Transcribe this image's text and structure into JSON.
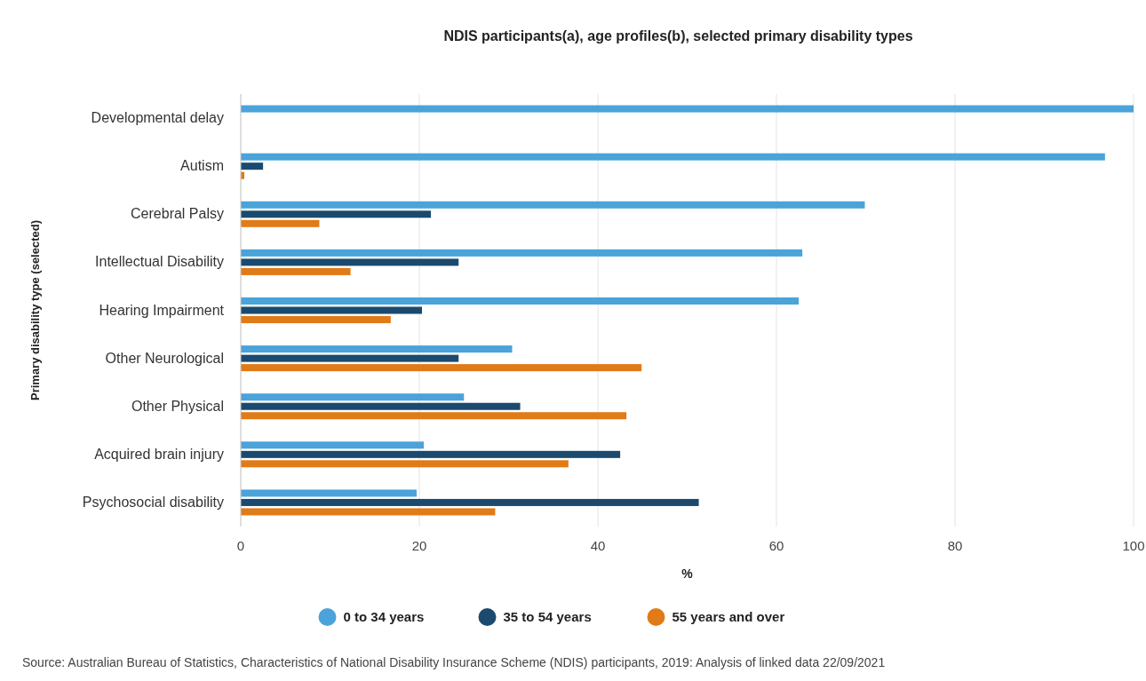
{
  "chart_data": {
    "type": "bar",
    "orientation": "horizontal",
    "title": "NDIS participants(a), age profiles(b), selected primary disability types",
    "xlabel": "%",
    "ylabel": "Primary disability type (selected)",
    "categories": [
      "Developmental delay",
      "Autism",
      "Cerebral Palsy",
      "Intellectual Disability",
      "Hearing Impairment",
      "Other Neurological",
      "Other Physical",
      "Acquired brain injury",
      "Psychosocial disability"
    ],
    "series": [
      {
        "name": "0 to 34 years",
        "color": "#4aa3d9",
        "values": [
          100,
          96.8,
          69.9,
          62.9,
          62.5,
          30.4,
          25.0,
          20.5,
          19.7
        ]
      },
      {
        "name": "35 to 54 years",
        "color": "#1b4a6e",
        "values": [
          0,
          2.5,
          21.3,
          24.4,
          20.3,
          24.4,
          31.3,
          42.5,
          51.3
        ]
      },
      {
        "name": "55 years and over",
        "color": "#e07b17",
        "values": [
          0,
          0.4,
          8.8,
          12.3,
          16.8,
          44.9,
          43.2,
          36.7,
          28.5
        ]
      }
    ],
    "xlim": [
      0,
      100
    ],
    "xticks": [
      0,
      20,
      40,
      60,
      80,
      100
    ],
    "grid": "x",
    "legend": "bottom",
    "annotations": [
      "Source: Australian Bureau of Statistics, Characteristics of National Disability Insurance Scheme (NDIS) participants, 2019: Analysis of linked data 22/09/2021"
    ]
  }
}
